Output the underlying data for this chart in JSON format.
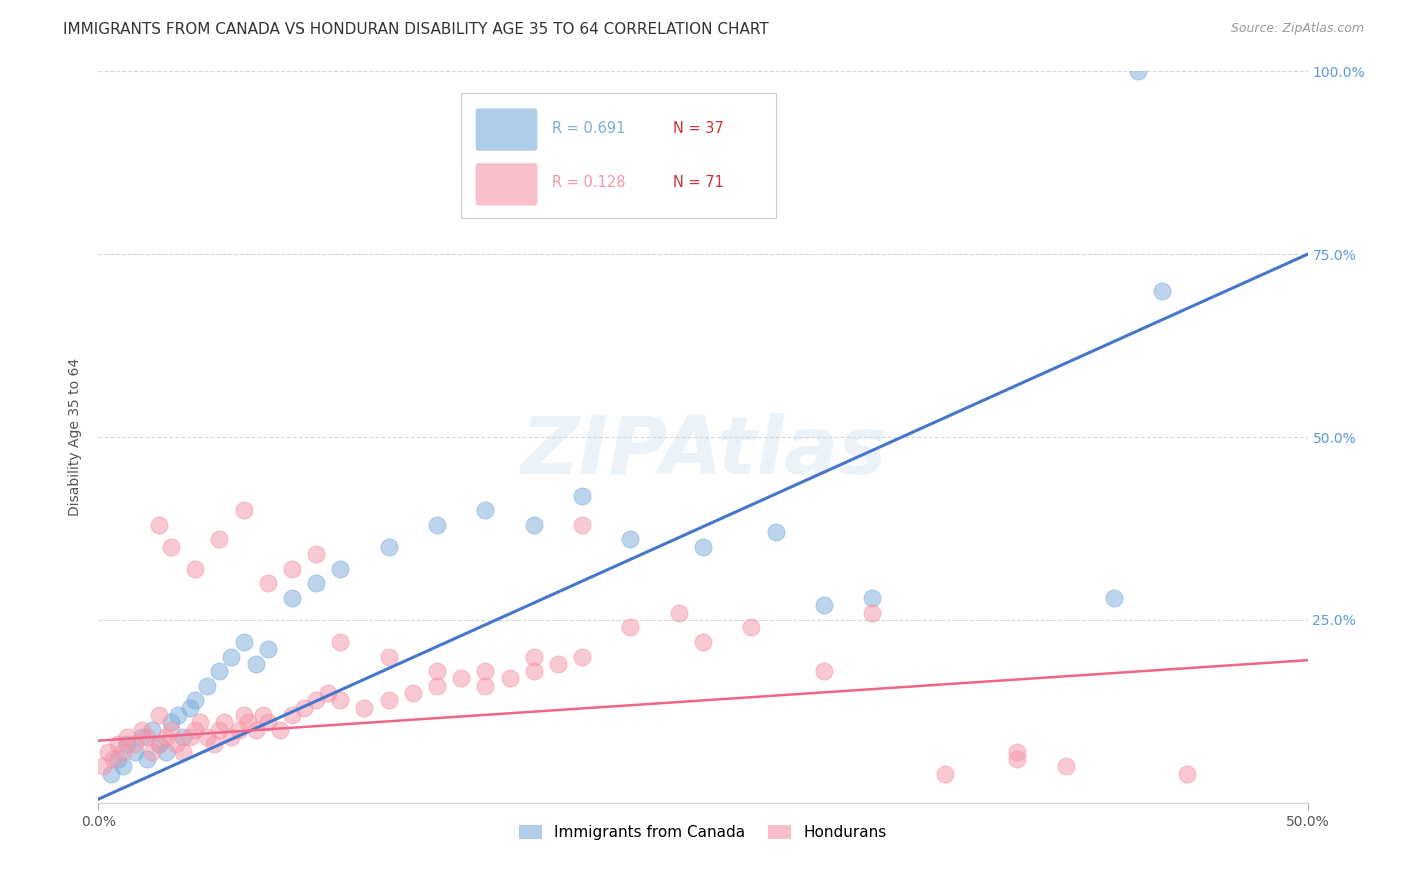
{
  "title": "IMMIGRANTS FROM CANADA VS HONDURAN DISABILITY AGE 35 TO 64 CORRELATION CHART",
  "source": "Source: ZipAtlas.com",
  "ylabel": "Disability Age 35 to 64",
  "watermark": "ZIPAtlas",
  "xmin": 0.0,
  "xmax": 0.5,
  "ymin": 0.0,
  "ymax": 1.0,
  "yticks": [
    0.0,
    0.25,
    0.5,
    0.75,
    1.0
  ],
  "ytick_labels": [
    "",
    "25.0%",
    "50.0%",
    "75.0%",
    "100.0%"
  ],
  "xticks": [
    0.0,
    0.5
  ],
  "xtick_labels": [
    "0.0%",
    "50.0%"
  ],
  "canada_color": "#7aaddc",
  "honduras_color": "#f595a8",
  "canada_R": 0.691,
  "canada_N": 37,
  "honduras_R": 0.128,
  "honduras_N": 71,
  "legend_label_canada": "Immigrants from Canada",
  "legend_label_honduras": "Hondurans",
  "canada_scatter_x": [
    0.005,
    0.008,
    0.01,
    0.012,
    0.015,
    0.018,
    0.02,
    0.022,
    0.025,
    0.028,
    0.03,
    0.033,
    0.035,
    0.038,
    0.04,
    0.045,
    0.05,
    0.055,
    0.06,
    0.065,
    0.07,
    0.08,
    0.09,
    0.1,
    0.12,
    0.14,
    0.16,
    0.18,
    0.2,
    0.22,
    0.25,
    0.28,
    0.32,
    0.42,
    0.43,
    0.44,
    0.3
  ],
  "canada_scatter_y": [
    0.04,
    0.06,
    0.05,
    0.08,
    0.07,
    0.09,
    0.06,
    0.1,
    0.08,
    0.07,
    0.11,
    0.12,
    0.09,
    0.13,
    0.14,
    0.16,
    0.18,
    0.2,
    0.22,
    0.19,
    0.21,
    0.28,
    0.3,
    0.32,
    0.35,
    0.38,
    0.4,
    0.38,
    0.42,
    0.36,
    0.35,
    0.37,
    0.28,
    0.28,
    1.0,
    0.7,
    0.27
  ],
  "honduras_scatter_x": [
    0.002,
    0.004,
    0.006,
    0.008,
    0.01,
    0.012,
    0.015,
    0.018,
    0.02,
    0.022,
    0.025,
    0.028,
    0.03,
    0.032,
    0.035,
    0.038,
    0.04,
    0.042,
    0.045,
    0.048,
    0.05,
    0.052,
    0.055,
    0.058,
    0.06,
    0.062,
    0.065,
    0.068,
    0.07,
    0.075,
    0.08,
    0.085,
    0.09,
    0.095,
    0.1,
    0.11,
    0.12,
    0.13,
    0.14,
    0.15,
    0.16,
    0.17,
    0.18,
    0.19,
    0.2,
    0.22,
    0.24,
    0.25,
    0.27,
    0.3,
    0.32,
    0.35,
    0.38,
    0.4,
    0.025,
    0.03,
    0.04,
    0.05,
    0.06,
    0.07,
    0.08,
    0.09,
    0.1,
    0.12,
    0.14,
    0.16,
    0.18,
    0.2,
    0.45,
    0.025,
    0.38
  ],
  "honduras_scatter_y": [
    0.05,
    0.07,
    0.06,
    0.08,
    0.07,
    0.09,
    0.08,
    0.1,
    0.09,
    0.07,
    0.08,
    0.09,
    0.1,
    0.08,
    0.07,
    0.09,
    0.1,
    0.11,
    0.09,
    0.08,
    0.1,
    0.11,
    0.09,
    0.1,
    0.12,
    0.11,
    0.1,
    0.12,
    0.11,
    0.1,
    0.12,
    0.13,
    0.14,
    0.15,
    0.14,
    0.13,
    0.14,
    0.15,
    0.16,
    0.17,
    0.18,
    0.17,
    0.18,
    0.19,
    0.2,
    0.24,
    0.26,
    0.22,
    0.24,
    0.18,
    0.26,
    0.04,
    0.06,
    0.05,
    0.38,
    0.35,
    0.32,
    0.36,
    0.4,
    0.3,
    0.32,
    0.34,
    0.22,
    0.2,
    0.18,
    0.16,
    0.2,
    0.38,
    0.04,
    0.12,
    0.07
  ],
  "canada_trendline_x": [
    0.0,
    0.5
  ],
  "canada_trendline_y": [
    0.005,
    0.75
  ],
  "honduras_trendline_x": [
    0.0,
    0.5
  ],
  "honduras_trendline_y": [
    0.085,
    0.195
  ],
  "title_fontsize": 11,
  "axis_label_fontsize": 10,
  "tick_fontsize": 10,
  "source_fontsize": 9,
  "background_color": "#ffffff",
  "grid_color": "#cccccc",
  "right_tick_color": "#5b9bd5"
}
